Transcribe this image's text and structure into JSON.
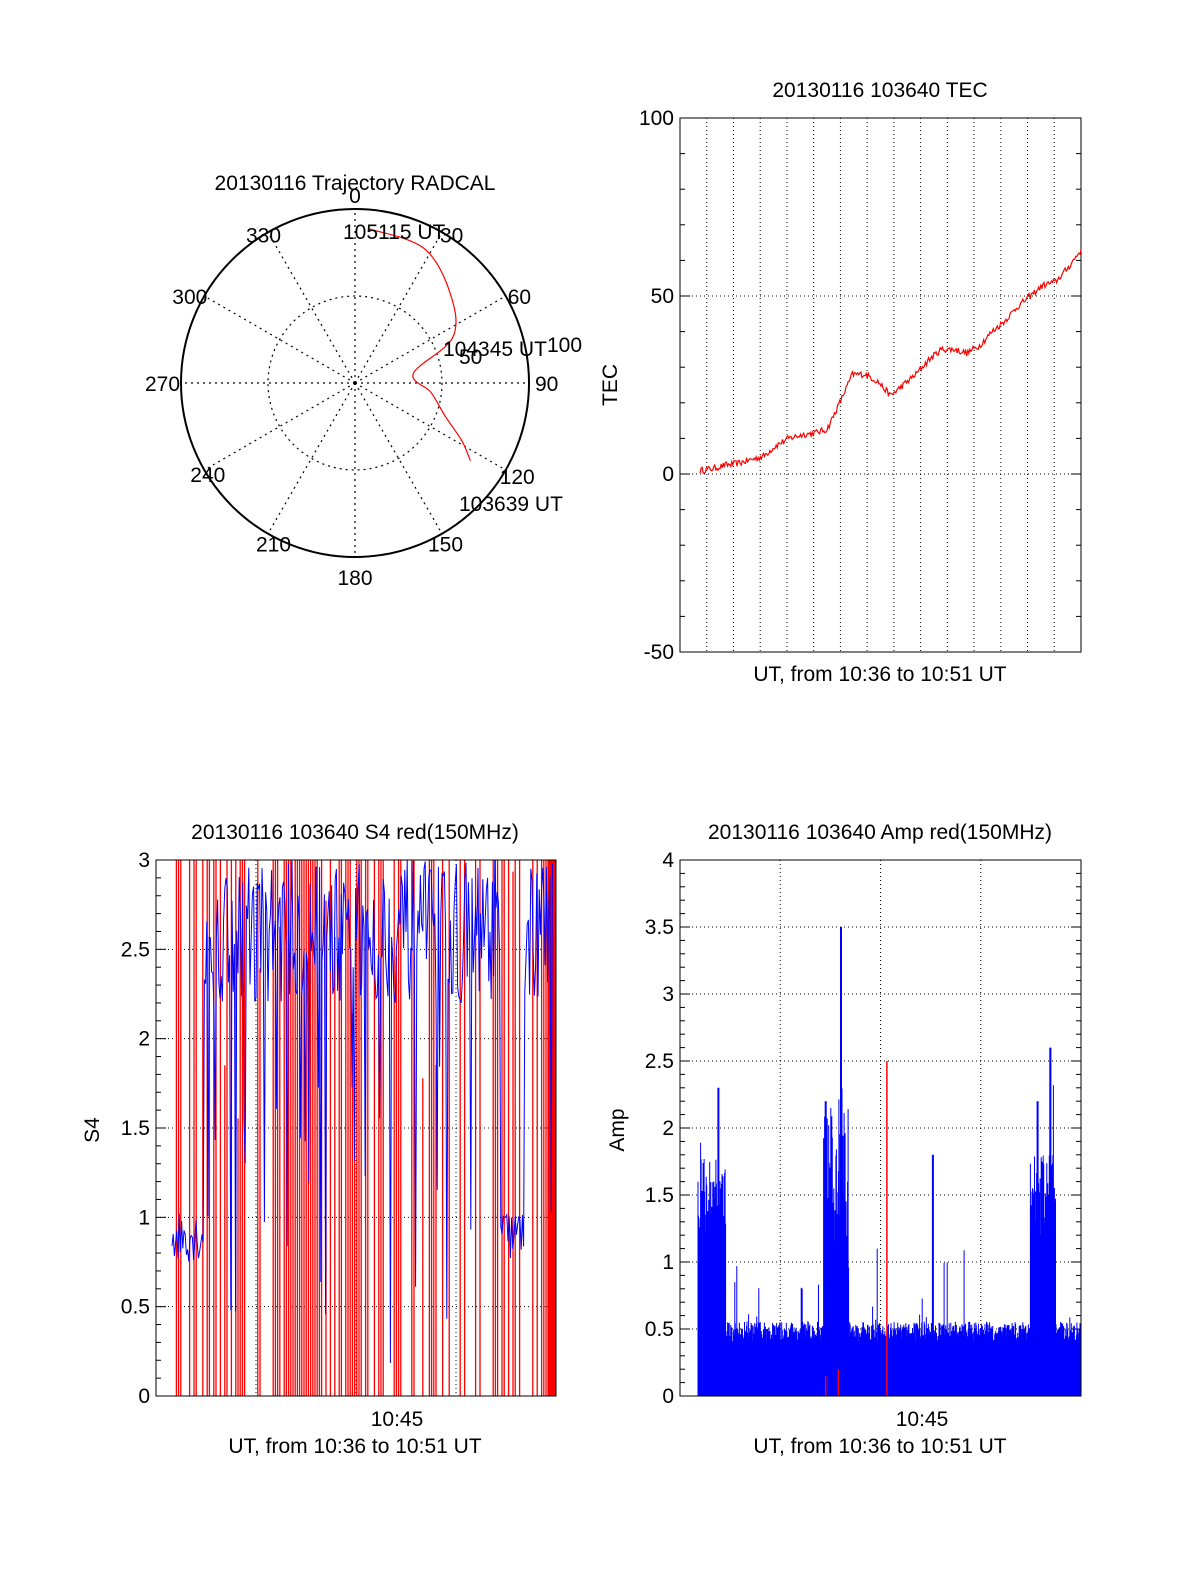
{
  "colors": {
    "red": "#ff0000",
    "blue": "#0000ff",
    "axis": "#000000",
    "grid": "#000000"
  },
  "chart_data": [
    {
      "type": "polar",
      "title": "20130116 Trajectory RADCAL",
      "angle_labels": [
        "0",
        "30",
        "60",
        "90",
        "120",
        "150",
        "180",
        "210",
        "240",
        "270",
        "300",
        "330"
      ],
      "ring_labels": [
        "50",
        "100"
      ],
      "rlim": [
        0,
        100
      ],
      "trajectory": {
        "color": "red",
        "points": [
          {
            "az": 124.0,
            "r": 80,
            "label": "103639 UT"
          },
          {
            "az": 118.5,
            "r": 70
          },
          {
            "az": 110.0,
            "r": 55
          },
          {
            "az": 97.0,
            "r": 44
          },
          {
            "az": 80.7,
            "r": 34,
            "label": "104345 UT"
          },
          {
            "az": 65.0,
            "r": 62
          },
          {
            "az": 47.0,
            "r": 75
          },
          {
            "az": 27.0,
            "r": 87
          },
          {
            "az": 5.0,
            "r": 89,
            "label": "105115 UT"
          }
        ]
      }
    },
    {
      "type": "line",
      "title": "20130116 103640 TEC",
      "xlabel": "UT, from 10:36 to 10:51 UT",
      "ylabel": "TEC",
      "xlim": [
        0,
        15
      ],
      "ylim": [
        -50,
        100
      ],
      "yticks": [
        "100",
        "50",
        "0",
        "-50"
      ],
      "series": [
        {
          "color": "red",
          "x": [
            0.0,
            0.5,
            1.0,
            1.5,
            2.0,
            2.5,
            3.0,
            3.5,
            4.0,
            4.5,
            5.0,
            5.5,
            6.0,
            6.5,
            7.0,
            7.5,
            8.0,
            8.5,
            9.0,
            9.5,
            10.0,
            10.5,
            11.0,
            11.5,
            12.0,
            12.5,
            13.0,
            13.5,
            14.0,
            14.5,
            15.0
          ],
          "y": [
            1,
            1.5,
            2.5,
            3,
            4,
            5,
            8,
            10,
            11,
            11.5,
            12.5,
            20,
            28,
            28,
            26,
            22,
            25,
            28,
            32,
            35,
            35,
            34,
            36,
            40,
            43,
            47,
            50,
            53,
            54,
            58,
            63
          ]
        }
      ]
    },
    {
      "type": "line",
      "title": "20130116 103640 S4 red(150MHz)",
      "xlabel": "UT, from 10:36 to 10:51 UT",
      "ylabel": "S4",
      "xlim": [
        0,
        15
      ],
      "ylim": [
        0,
        3
      ],
      "yticks": [
        "3",
        "2.5",
        "2",
        "1.5",
        "1",
        "0.5",
        "0"
      ],
      "xticks": [
        "10:45"
      ],
      "series": [
        {
          "name": "",
          "color": "red",
          "note_values": "dense vertical spikes spanning 0 to 3 throughout interval"
        },
        {
          "name": "",
          "color": "blue",
          "note_values": "dense oscillation; ~0.8 between 10:36-10:37 and 10:49-10:50, near 3 elsewhere"
        }
      ]
    },
    {
      "type": "line",
      "title": "20130116 103640 Amp red(150MHz)",
      "xlabel": "UT, from 10:36 to 10:51 UT",
      "ylabel": "Amp",
      "xlim": [
        0,
        15
      ],
      "ylim": [
        0,
        4
      ],
      "yticks": [
        "4",
        "3.5",
        "3",
        "2.5",
        "2",
        "1.5",
        "1",
        "0.5",
        "0"
      ],
      "xticks": [
        "10:45"
      ],
      "series": [
        {
          "color": "blue",
          "peaks": [
            {
              "x": 0.8,
              "y": 2.3
            },
            {
              "x": 5.0,
              "y": 2.2
            },
            {
              "x": 5.6,
              "y": 3.5
            },
            {
              "x": 9.2,
              "y": 1.8
            },
            {
              "x": 13.3,
              "y": 2.2
            },
            {
              "x": 13.8,
              "y": 2.6
            }
          ],
          "baseline": 0.45
        },
        {
          "color": "red",
          "peaks": [
            {
              "x": 5.0,
              "y": 0.15
            },
            {
              "x": 5.5,
              "y": 0.2
            },
            {
              "x": 7.4,
              "y": 2.5
            }
          ]
        }
      ]
    }
  ]
}
